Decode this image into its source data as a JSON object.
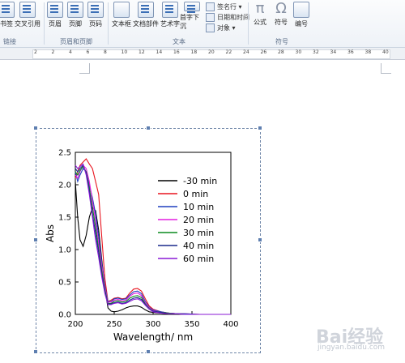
{
  "ribbon": {
    "buttons": [
      {
        "label": "书签"
      },
      {
        "label": "交叉引用"
      },
      {
        "label": "页眉"
      },
      {
        "label": "页脚"
      },
      {
        "label": "页码"
      },
      {
        "label": "文本框"
      },
      {
        "label": "文档部件"
      },
      {
        "label": "艺术字"
      },
      {
        "label": "首字下沉"
      },
      {
        "label": "公式"
      },
      {
        "label": "符号"
      },
      {
        "label": "编号"
      }
    ],
    "small_items": [
      "签名行 ▾",
      "日期和时间",
      "对象 ▾"
    ],
    "groups": [
      "链接",
      "页眉和页脚",
      "文本",
      "符号"
    ]
  },
  "ruler": {
    "numbers": [
      "2",
      "2",
      "4",
      "6",
      "8",
      "10",
      "12",
      "14",
      "16",
      "18",
      "20",
      "22",
      "24",
      "26",
      "28",
      "30",
      "32",
      "34",
      "36",
      "38",
      "40"
    ]
  },
  "watermark": {
    "brand": "Bai经验",
    "url": "jingyan.baidu.com"
  },
  "chart_data": {
    "type": "line",
    "xlabel": "Wavelength/ nm",
    "ylabel": "Abs",
    "xlim": [
      200,
      400
    ],
    "ylim": [
      0,
      2.5
    ],
    "xticks": [
      200,
      250,
      300,
      350,
      400
    ],
    "yticks": [
      0.0,
      0.5,
      1.0,
      1.5,
      2.0,
      2.5
    ],
    "legend_position": "top-right",
    "series": [
      {
        "name": "-30 min",
        "color": "#000000",
        "x": [
          200,
          203,
          206,
          210,
          214,
          218,
          222,
          226,
          230,
          234,
          238,
          242,
          246,
          250,
          255,
          260,
          265,
          270,
          275,
          280,
          285,
          290,
          295,
          300,
          310,
          320,
          330,
          340,
          360,
          380,
          400
        ],
        "y": [
          2.05,
          1.5,
          1.15,
          1.05,
          1.22,
          1.5,
          1.65,
          1.6,
          1.3,
          0.85,
          0.4,
          0.1,
          0.05,
          0.04,
          0.05,
          0.07,
          0.1,
          0.12,
          0.13,
          0.13,
          0.11,
          0.07,
          0.04,
          0.03,
          0.02,
          0.01,
          0.01,
          0.0,
          0.0,
          0.0,
          0.0
        ]
      },
      {
        "name": "0 min",
        "color": "#e8141e",
        "x": [
          200,
          203,
          206,
          210,
          214,
          218,
          222,
          226,
          230,
          234,
          238,
          242,
          246,
          250,
          255,
          260,
          265,
          270,
          275,
          280,
          285,
          290,
          295,
          300,
          310,
          320,
          330,
          340,
          360,
          380,
          400
        ],
        "y": [
          2.1,
          2.2,
          2.3,
          2.35,
          2.4,
          2.32,
          2.25,
          2.05,
          1.85,
          1.2,
          0.55,
          0.2,
          0.22,
          0.25,
          0.26,
          0.24,
          0.25,
          0.33,
          0.39,
          0.4,
          0.36,
          0.24,
          0.13,
          0.08,
          0.04,
          0.02,
          0.01,
          0.01,
          0.0,
          0.0,
          0.0
        ]
      },
      {
        "name": "10 min",
        "color": "#1f3fbf",
        "x": [
          200,
          203,
          206,
          210,
          214,
          218,
          222,
          226,
          230,
          234,
          238,
          242,
          246,
          250,
          255,
          260,
          265,
          270,
          275,
          280,
          285,
          290,
          295,
          300,
          310,
          320,
          330,
          340,
          360,
          380,
          400
        ],
        "y": [
          2.2,
          2.05,
          2.15,
          2.25,
          2.2,
          2.0,
          1.8,
          1.55,
          1.2,
          0.8,
          0.45,
          0.2,
          0.2,
          0.24,
          0.25,
          0.23,
          0.24,
          0.3,
          0.35,
          0.36,
          0.32,
          0.2,
          0.11,
          0.07,
          0.04,
          0.02,
          0.01,
          0.01,
          0.0,
          0.0,
          0.0
        ]
      },
      {
        "name": "20 min",
        "color": "#e41ee0",
        "x": [
          200,
          203,
          206,
          210,
          214,
          218,
          222,
          226,
          230,
          234,
          238,
          242,
          246,
          250,
          255,
          260,
          265,
          270,
          275,
          280,
          285,
          290,
          295,
          300,
          310,
          320,
          330,
          340,
          360,
          380,
          400
        ],
        "y": [
          2.15,
          2.1,
          2.2,
          2.3,
          2.25,
          2.05,
          1.75,
          1.45,
          1.1,
          0.75,
          0.42,
          0.19,
          0.19,
          0.22,
          0.23,
          0.21,
          0.22,
          0.28,
          0.32,
          0.33,
          0.29,
          0.18,
          0.1,
          0.06,
          0.03,
          0.02,
          0.01,
          0.0,
          0.0,
          0.0,
          0.0
        ]
      },
      {
        "name": "30 min",
        "color": "#0a8a1e",
        "x": [
          200,
          203,
          206,
          210,
          214,
          218,
          222,
          226,
          230,
          234,
          238,
          242,
          246,
          250,
          255,
          260,
          265,
          270,
          275,
          280,
          285,
          290,
          295,
          300,
          310,
          320,
          330,
          340,
          360,
          380,
          400
        ],
        "y": [
          2.2,
          2.15,
          2.22,
          2.28,
          2.2,
          1.95,
          1.65,
          1.35,
          1.0,
          0.68,
          0.38,
          0.17,
          0.17,
          0.2,
          0.21,
          0.19,
          0.2,
          0.25,
          0.28,
          0.29,
          0.26,
          0.16,
          0.09,
          0.05,
          0.03,
          0.02,
          0.01,
          0.0,
          0.0,
          0.0,
          0.0
        ]
      },
      {
        "name": "40 min",
        "color": "#1a2a8c",
        "x": [
          200,
          203,
          206,
          210,
          214,
          218,
          222,
          226,
          230,
          234,
          238,
          242,
          246,
          250,
          255,
          260,
          265,
          270,
          275,
          280,
          285,
          290,
          295,
          300,
          310,
          320,
          330,
          340,
          360,
          380,
          400
        ],
        "y": [
          2.25,
          2.2,
          2.25,
          2.3,
          2.18,
          1.9,
          1.55,
          1.25,
          0.95,
          0.62,
          0.35,
          0.16,
          0.16,
          0.18,
          0.19,
          0.17,
          0.18,
          0.22,
          0.25,
          0.26,
          0.23,
          0.15,
          0.08,
          0.05,
          0.03,
          0.01,
          0.01,
          0.0,
          0.0,
          0.0,
          0.0
        ]
      },
      {
        "name": "60 min",
        "color": "#8a1ad6",
        "x": [
          200,
          203,
          206,
          210,
          214,
          218,
          222,
          226,
          230,
          234,
          238,
          242,
          246,
          250,
          255,
          260,
          265,
          270,
          275,
          280,
          285,
          290,
          295,
          300,
          310,
          320,
          330,
          340,
          360,
          380,
          400
        ],
        "y": [
          2.3,
          2.25,
          2.28,
          2.32,
          2.15,
          1.85,
          1.5,
          1.15,
          0.88,
          0.58,
          0.32,
          0.15,
          0.15,
          0.17,
          0.18,
          0.16,
          0.17,
          0.2,
          0.23,
          0.24,
          0.21,
          0.14,
          0.08,
          0.04,
          0.02,
          0.01,
          0.01,
          0.0,
          0.0,
          0.0,
          0.0
        ]
      }
    ]
  }
}
